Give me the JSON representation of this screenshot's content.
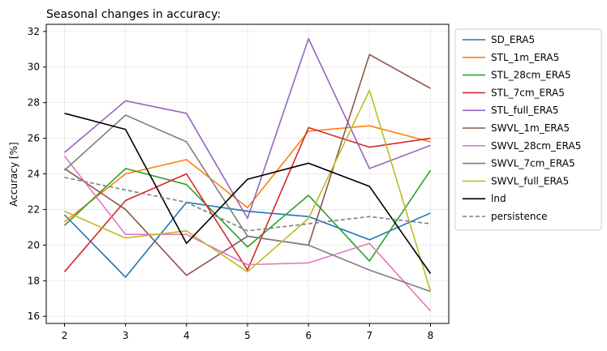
{
  "chart_data": {
    "type": "line",
    "title": "Seasonal changes in accuracy:",
    "xlabel": "",
    "ylabel": "Accuracy [%]",
    "x": [
      2,
      3,
      4,
      5,
      6,
      7,
      8
    ],
    "xlim": [
      1.7,
      8.3
    ],
    "ylim": [
      15.6,
      32.4
    ],
    "xticks": [
      2,
      3,
      4,
      5,
      6,
      7,
      8
    ],
    "yticks": [
      16,
      18,
      20,
      22,
      24,
      26,
      28,
      30,
      32
    ],
    "grid": true,
    "legend_position": "outside right",
    "series": [
      {
        "name": "SD_ERA5",
        "color": "#1f77b4",
        "dash": "solid",
        "values": [
          21.7,
          18.2,
          22.4,
          21.9,
          21.6,
          20.3,
          21.8
        ]
      },
      {
        "name": "STL_1m_ERA5",
        "color": "#ff7f0e",
        "dash": "solid",
        "values": [
          21.3,
          24.0,
          24.8,
          22.1,
          26.4,
          26.7,
          25.8
        ]
      },
      {
        "name": "STL_28cm_ERA5",
        "color": "#2ca02c",
        "dash": "solid",
        "values": [
          21.1,
          24.3,
          23.4,
          19.9,
          22.8,
          19.1,
          24.2
        ]
      },
      {
        "name": "STL_7cm_ERA5",
        "color": "#d62728",
        "dash": "solid",
        "values": [
          18.5,
          22.5,
          24.0,
          18.6,
          26.6,
          25.5,
          26.0
        ]
      },
      {
        "name": "STL_full_ERA5",
        "color": "#9467bd",
        "dash": "solid",
        "values": [
          25.2,
          28.1,
          27.4,
          21.5,
          31.6,
          24.3,
          25.6
        ]
      },
      {
        "name": "SWVL_1m_ERA5",
        "color": "#8c564b",
        "dash": "solid",
        "values": [
          24.3,
          22.0,
          18.3,
          20.5,
          20.0,
          30.7,
          28.8
        ]
      },
      {
        "name": "SWVL_28cm_ERA5",
        "color": "#e377c2",
        "dash": "solid",
        "values": [
          25.0,
          20.6,
          20.6,
          18.9,
          19.0,
          20.1,
          16.3
        ]
      },
      {
        "name": "SWVL_7cm_ERA5",
        "color": "#7f7f7f",
        "dash": "solid",
        "values": [
          24.2,
          27.3,
          25.8,
          20.5,
          20.0,
          18.6,
          17.4
        ]
      },
      {
        "name": "SWVL_full_ERA5",
        "color": "#bcbd22",
        "dash": "solid",
        "values": [
          21.9,
          20.4,
          20.8,
          18.5,
          21.5,
          28.7,
          17.4
        ]
      },
      {
        "name": "lnd",
        "color": "#000000",
        "dash": "solid",
        "values": [
          27.4,
          26.5,
          20.1,
          23.7,
          24.6,
          23.3,
          18.4
        ]
      },
      {
        "name": "persistence",
        "color": "#7f7f7f",
        "dash": "dashed",
        "values": [
          23.8,
          23.1,
          22.4,
          20.8,
          21.2,
          21.6,
          21.2
        ]
      }
    ]
  }
}
